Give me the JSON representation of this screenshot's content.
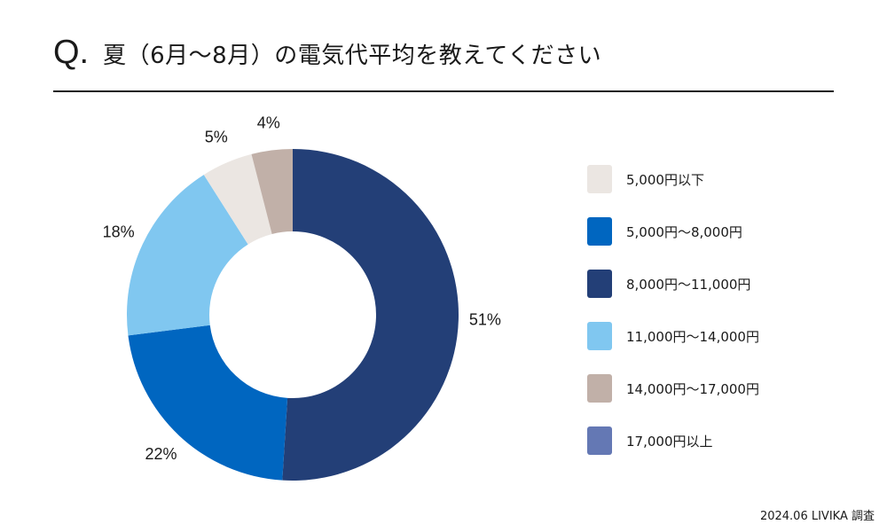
{
  "header": {
    "q_mark": "Q.",
    "title": "夏（6月〜8月）の電気代平均を教えてください"
  },
  "chart_data": {
    "type": "pie",
    "style": "donut",
    "categories": [
      "5,000円以下",
      "5,000円〜8,000円",
      "8,000円〜11,000円",
      "11,000円〜14,000円",
      "14,000円〜17,000円",
      "17,000円以上"
    ],
    "values": [
      5,
      22,
      51,
      18,
      4,
      0
    ],
    "value_labels": [
      "5%",
      "22%",
      "51%",
      "18%",
      "4%",
      ""
    ],
    "colors": [
      "#ebe6e2",
      "#0066c0",
      "#233f77",
      "#80c7f0",
      "#c1b0a8",
      "#6478b4"
    ],
    "slice_order": [
      2,
      1,
      3,
      0,
      4
    ],
    "start_angle_deg": 0,
    "direction": "clockwise",
    "legend_position": "right"
  },
  "legend": {
    "items": [
      {
        "label": "5,000円以下",
        "color": "#ebe6e2"
      },
      {
        "label": "5,000円〜8,000円",
        "color": "#0066c0"
      },
      {
        "label": "8,000円〜11,000円",
        "color": "#233f77"
      },
      {
        "label": "11,000円〜14,000円",
        "color": "#80c7f0"
      },
      {
        "label": "14,000円〜17,000円",
        "color": "#c1b0a8"
      },
      {
        "label": "17,000円以上",
        "color": "#6478b4"
      }
    ]
  },
  "footer": {
    "source": "2024.06 LIVIKA 調査"
  }
}
